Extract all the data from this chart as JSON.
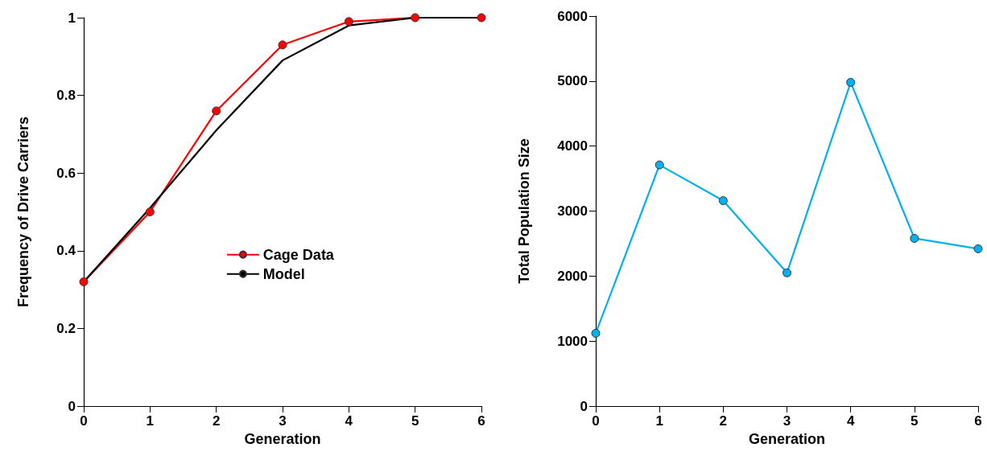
{
  "chart_data": [
    {
      "type": "line",
      "xlabel": "Generation",
      "ylabel": "Frequency of Drive Carriers",
      "x": [
        0,
        1,
        2,
        3,
        4,
        5,
        6
      ],
      "series": [
        {
          "name": "Cage Data",
          "color": "#ff0000",
          "marker": "circle",
          "values": [
            0.32,
            0.5,
            0.76,
            0.93,
            0.99,
            1,
            1
          ]
        },
        {
          "name": "Model",
          "color": "#000000",
          "marker": "none",
          "values": [
            0.32,
            0.51,
            0.71,
            0.89,
            0.98,
            1,
            1
          ]
        }
      ],
      "xlim": [
        0,
        6
      ],
      "xticks": [
        0,
        1,
        2,
        3,
        4,
        5,
        6
      ],
      "ylim": [
        0,
        1
      ],
      "yticks": [
        0,
        0.2,
        0.4,
        0.6,
        0.8,
        1
      ],
      "grid": false,
      "legend": "center"
    },
    {
      "type": "line",
      "xlabel": "Generation",
      "ylabel": "Total Population Size",
      "x": [
        0,
        1,
        2,
        3,
        4,
        5,
        6
      ],
      "series": [
        {
          "color": "#00b0f0",
          "marker": "circle",
          "values": [
            1120,
            3710,
            3160,
            2050,
            4980,
            2580,
            2420
          ]
        }
      ],
      "xlim": [
        0,
        6
      ],
      "xticks": [
        0,
        1,
        2,
        3,
        4,
        5,
        6
      ],
      "ylim": [
        0,
        6000
      ],
      "yticks": [
        0,
        1000,
        2000,
        3000,
        4000,
        5000,
        6000
      ],
      "grid": false,
      "legend": false
    }
  ]
}
